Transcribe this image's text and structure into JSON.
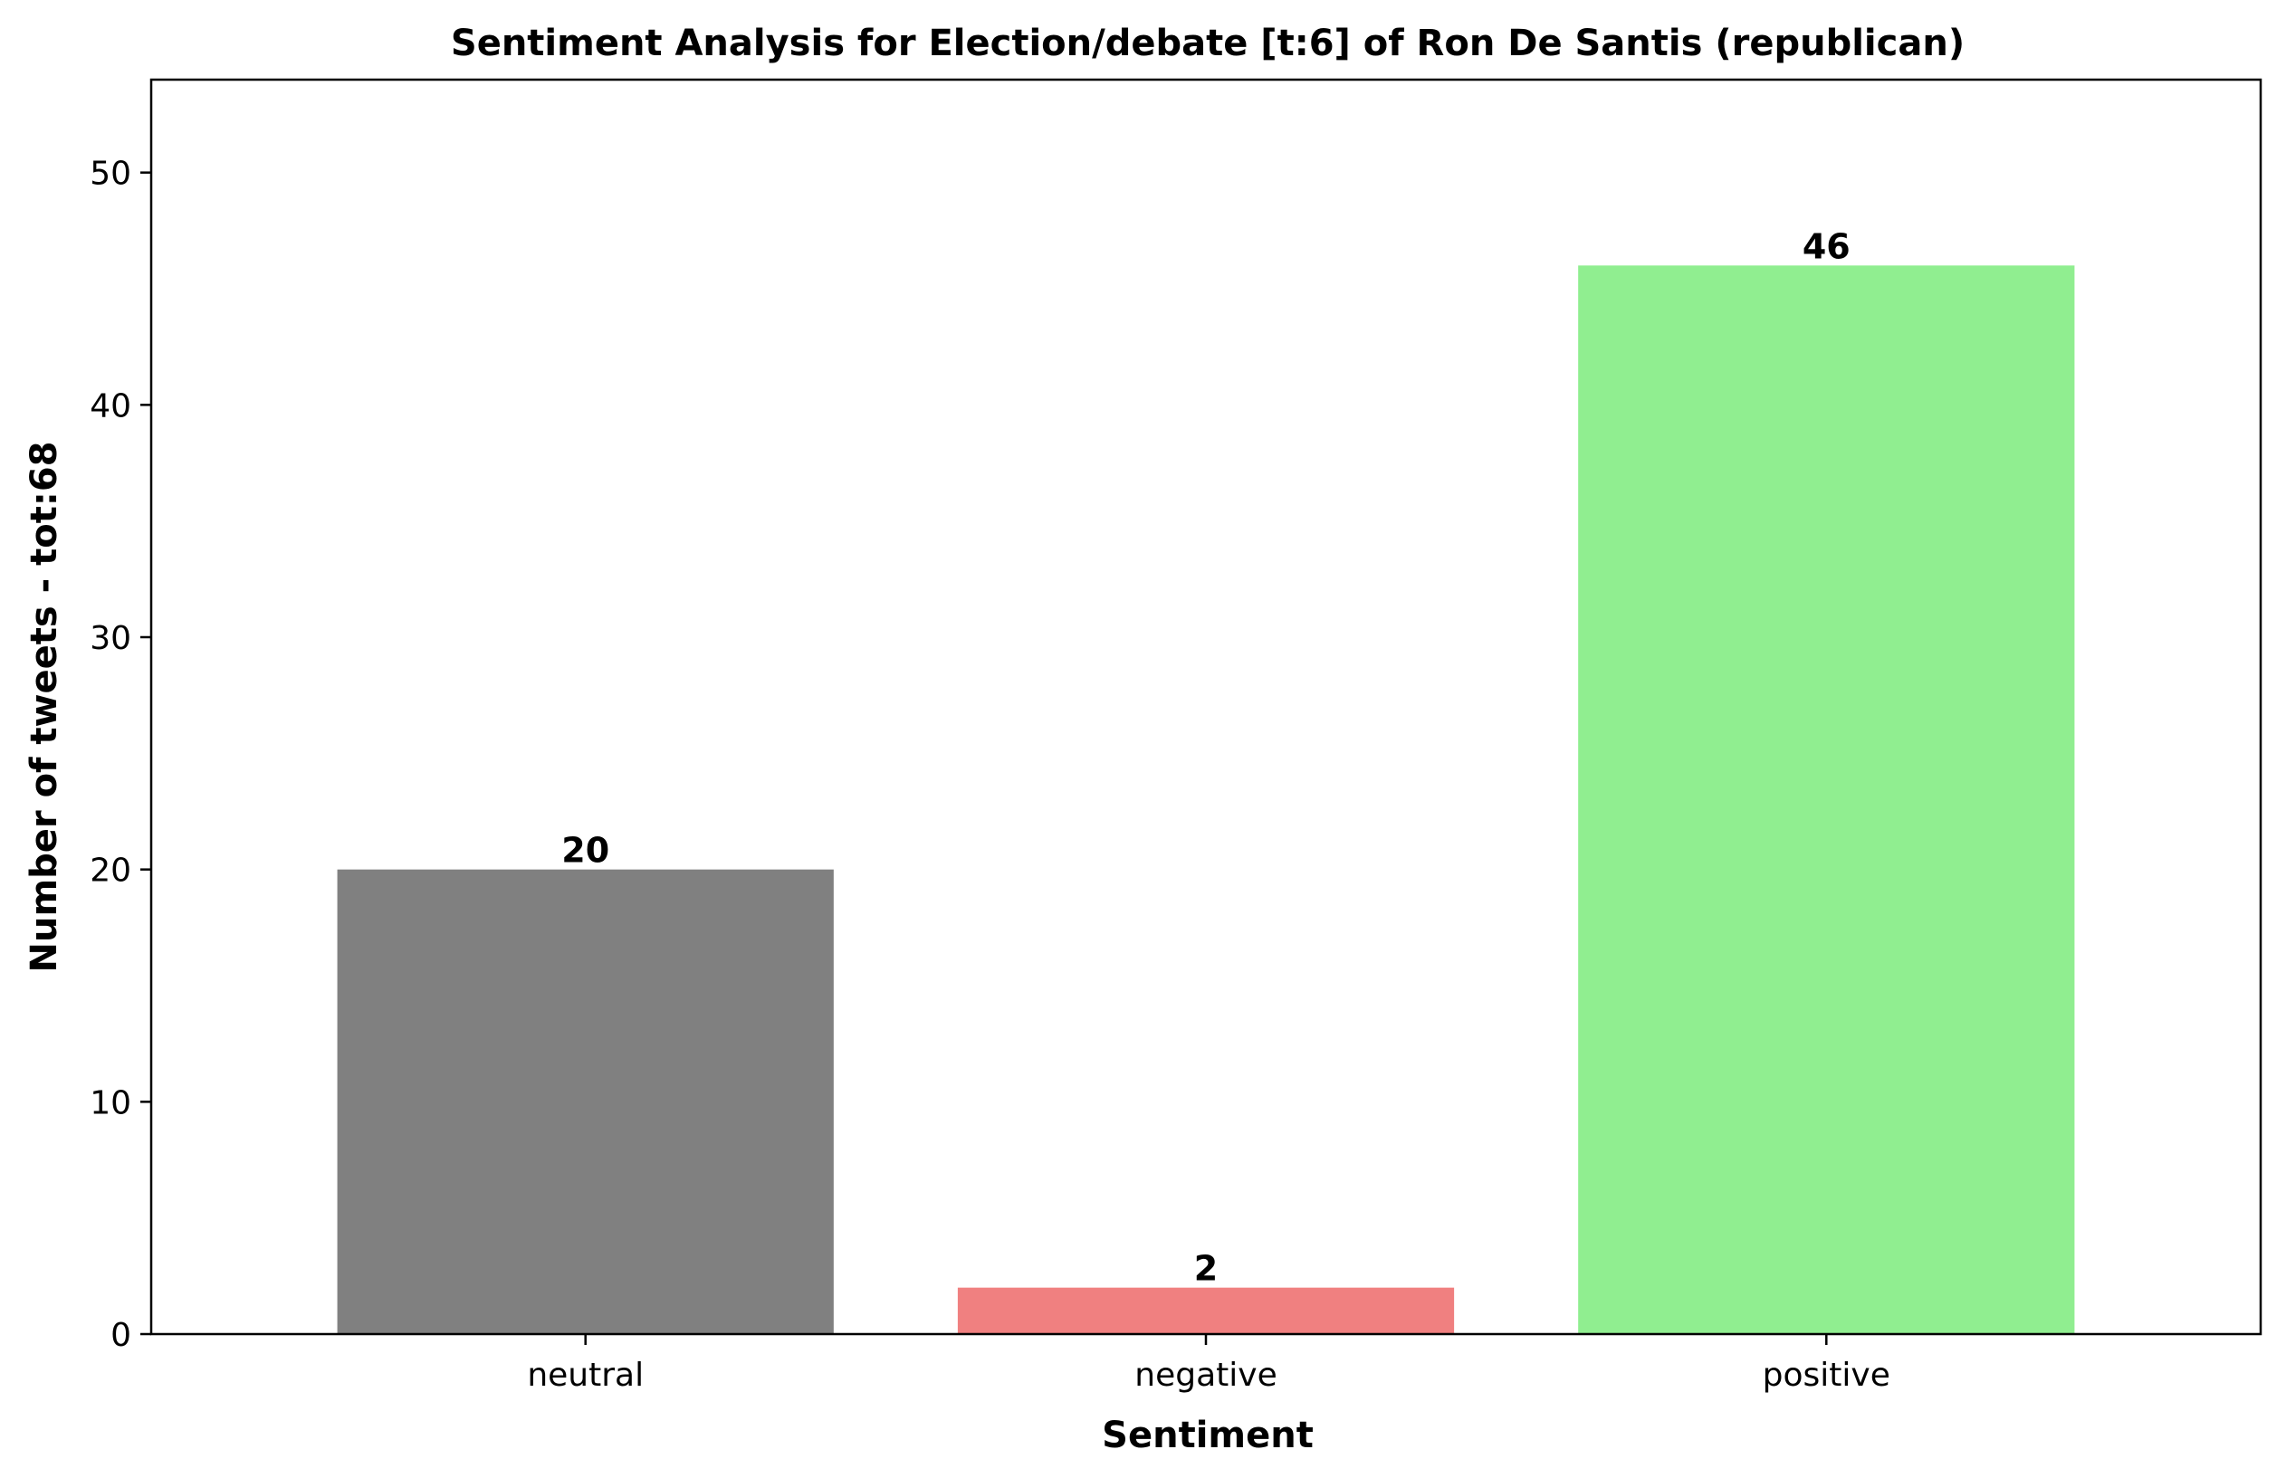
{
  "chart_data": {
    "type": "bar",
    "title": "Sentiment Analysis for Election/debate [t:6] of Ron De Santis (republican)",
    "xlabel": "Sentiment",
    "ylabel": "Number of tweets - tot:68",
    "categories": [
      "neutral",
      "negative",
      "positive"
    ],
    "values": [
      20,
      2,
      46
    ],
    "colors": [
      "#808080",
      "#f08080",
      "#90ee90"
    ],
    "ylim": [
      0,
      54
    ],
    "yticks": [
      0,
      10,
      20,
      30,
      40,
      50
    ],
    "grid": false,
    "data_labels": true
  }
}
